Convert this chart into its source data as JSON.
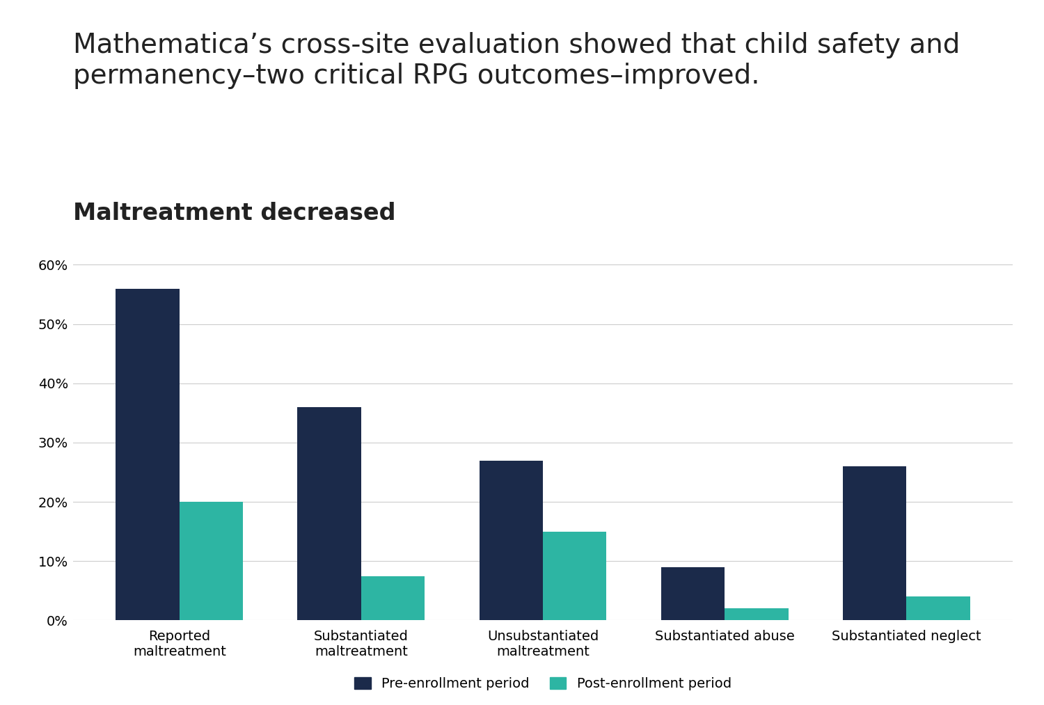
{
  "title": "Mathematica’s cross-site evaluation showed that child safety and\npermanency–two critical RPG outcomes–improved.",
  "subtitle": "Maltreatment decreased",
  "categories": [
    "Reported\nmaltreatment",
    "Substantiated\nmaltreatment",
    "Unsubstantiated\nmaltreatment",
    "Substantiated abuse",
    "Substantiated neglect"
  ],
  "pre_enrollment": [
    56,
    36,
    27,
    9,
    26
  ],
  "post_enrollment": [
    20,
    7.5,
    15,
    2,
    4
  ],
  "color_pre": "#1b2a4a",
  "color_post": "#2db5a3",
  "ylim": [
    0,
    65
  ],
  "yticks": [
    0,
    10,
    20,
    30,
    40,
    50,
    60
  ],
  "legend_pre": "Pre-enrollment period",
  "legend_post": "Post-enrollment period",
  "background_color": "#ffffff",
  "title_fontsize": 28,
  "subtitle_fontsize": 24,
  "tick_fontsize": 14,
  "legend_fontsize": 14,
  "bar_width": 0.35,
  "grid_color": "#cccccc",
  "text_color": "#222222"
}
